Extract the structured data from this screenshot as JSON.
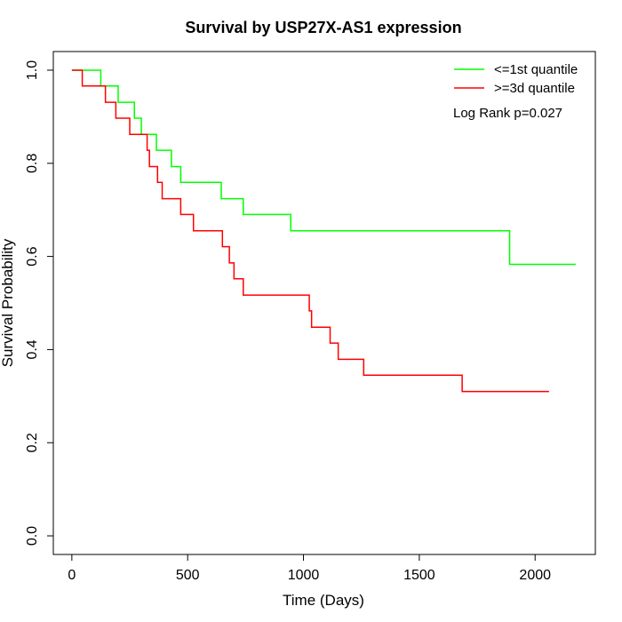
{
  "chart_data": {
    "type": "line",
    "title": "Survival by USP27X-AS1 expression",
    "xlabel": "Time (Days)",
    "ylabel": "Survival Probability",
    "xlim": [
      -80,
      2260
    ],
    "ylim": [
      -0.04,
      1.04
    ],
    "xticks": [
      0,
      500,
      1000,
      1500,
      2000
    ],
    "yticks": [
      0.0,
      0.2,
      0.4,
      0.6,
      0.8,
      1.0
    ],
    "xtick_labels": [
      "0",
      "500",
      "1000",
      "1500",
      "2000"
    ],
    "ytick_labels": [
      "0.0",
      "0.2",
      "0.4",
      "0.6",
      "0.8",
      "1.0"
    ],
    "legend_position": "top-right",
    "annotation": "Log Rank p=0.027",
    "series": [
      {
        "name": "<=1st quantile",
        "color": "#00ff00",
        "step_x": [
          0,
          125,
          200,
          270,
          300,
          350,
          365,
          430,
          470,
          645,
          740,
          945,
          1890,
          2175
        ],
        "step_y": [
          1.0,
          0.966,
          0.931,
          0.897,
          0.862,
          0.862,
          0.828,
          0.793,
          0.759,
          0.724,
          0.69,
          0.655,
          0.583,
          0.583
        ]
      },
      {
        "name": ">=3d quantile",
        "color": "#ff0000",
        "step_x": [
          0,
          45,
          145,
          190,
          250,
          310,
          325,
          335,
          370,
          390,
          470,
          525,
          650,
          680,
          700,
          740,
          1025,
          1035,
          1095,
          1115,
          1150,
          1260,
          1685,
          2060
        ],
        "step_y": [
          1.0,
          0.966,
          0.931,
          0.897,
          0.862,
          0.862,
          0.828,
          0.793,
          0.759,
          0.724,
          0.69,
          0.655,
          0.621,
          0.586,
          0.552,
          0.517,
          0.483,
          0.448,
          0.448,
          0.414,
          0.379,
          0.345,
          0.31,
          0.31
        ]
      }
    ]
  }
}
